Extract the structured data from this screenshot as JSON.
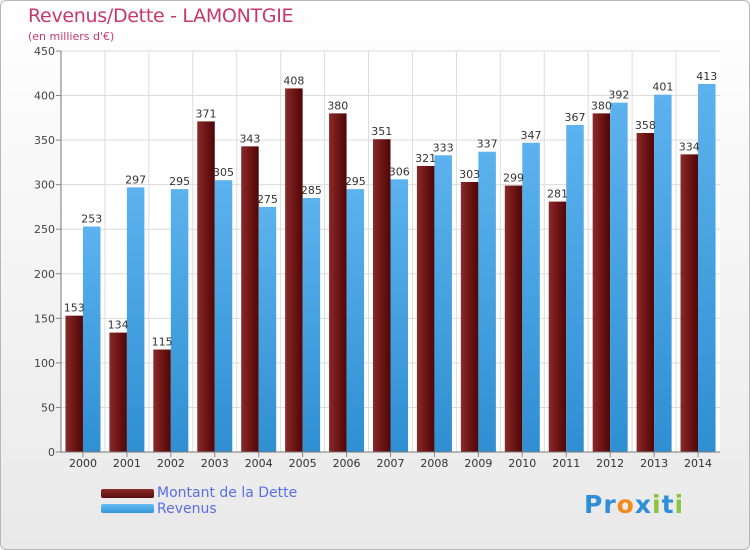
{
  "chart_data": {
    "type": "bar",
    "title": "Revenus/Dette - LAMONTGIE",
    "subtitle": "(en milliers d'€)",
    "categories": [
      "2000",
      "2001",
      "2002",
      "2003",
      "2004",
      "2005",
      "2006",
      "2007",
      "2008",
      "2009",
      "2010",
      "2011",
      "2012",
      "2013",
      "2014"
    ],
    "series": [
      {
        "name": "Montant de la Dette",
        "values": [
          153,
          134,
          115,
          371,
          343,
          408,
          380,
          351,
          321,
          303,
          299,
          281,
          380,
          358,
          334
        ],
        "color": "#7a1e1e"
      },
      {
        "name": "Revenus",
        "values": [
          253,
          297,
          295,
          305,
          275,
          285,
          295,
          306,
          333,
          337,
          347,
          367,
          392,
          401,
          413
        ],
        "color": "#4ea8e8"
      }
    ],
    "ylim": [
      0,
      450
    ],
    "yticks": [
      0,
      50,
      100,
      150,
      200,
      250,
      300,
      350,
      400,
      450
    ],
    "grid": true,
    "legend": "bottom-left"
  },
  "logo": {
    "letters": [
      "P",
      "r",
      "o",
      "x",
      "i",
      "t",
      "i"
    ],
    "colors": [
      "#2f8fd6",
      "#2f8fd6",
      "#f28a1d",
      "#2f8fd6",
      "#8bc53f",
      "#2f8fd6",
      "#8bc53f"
    ]
  }
}
